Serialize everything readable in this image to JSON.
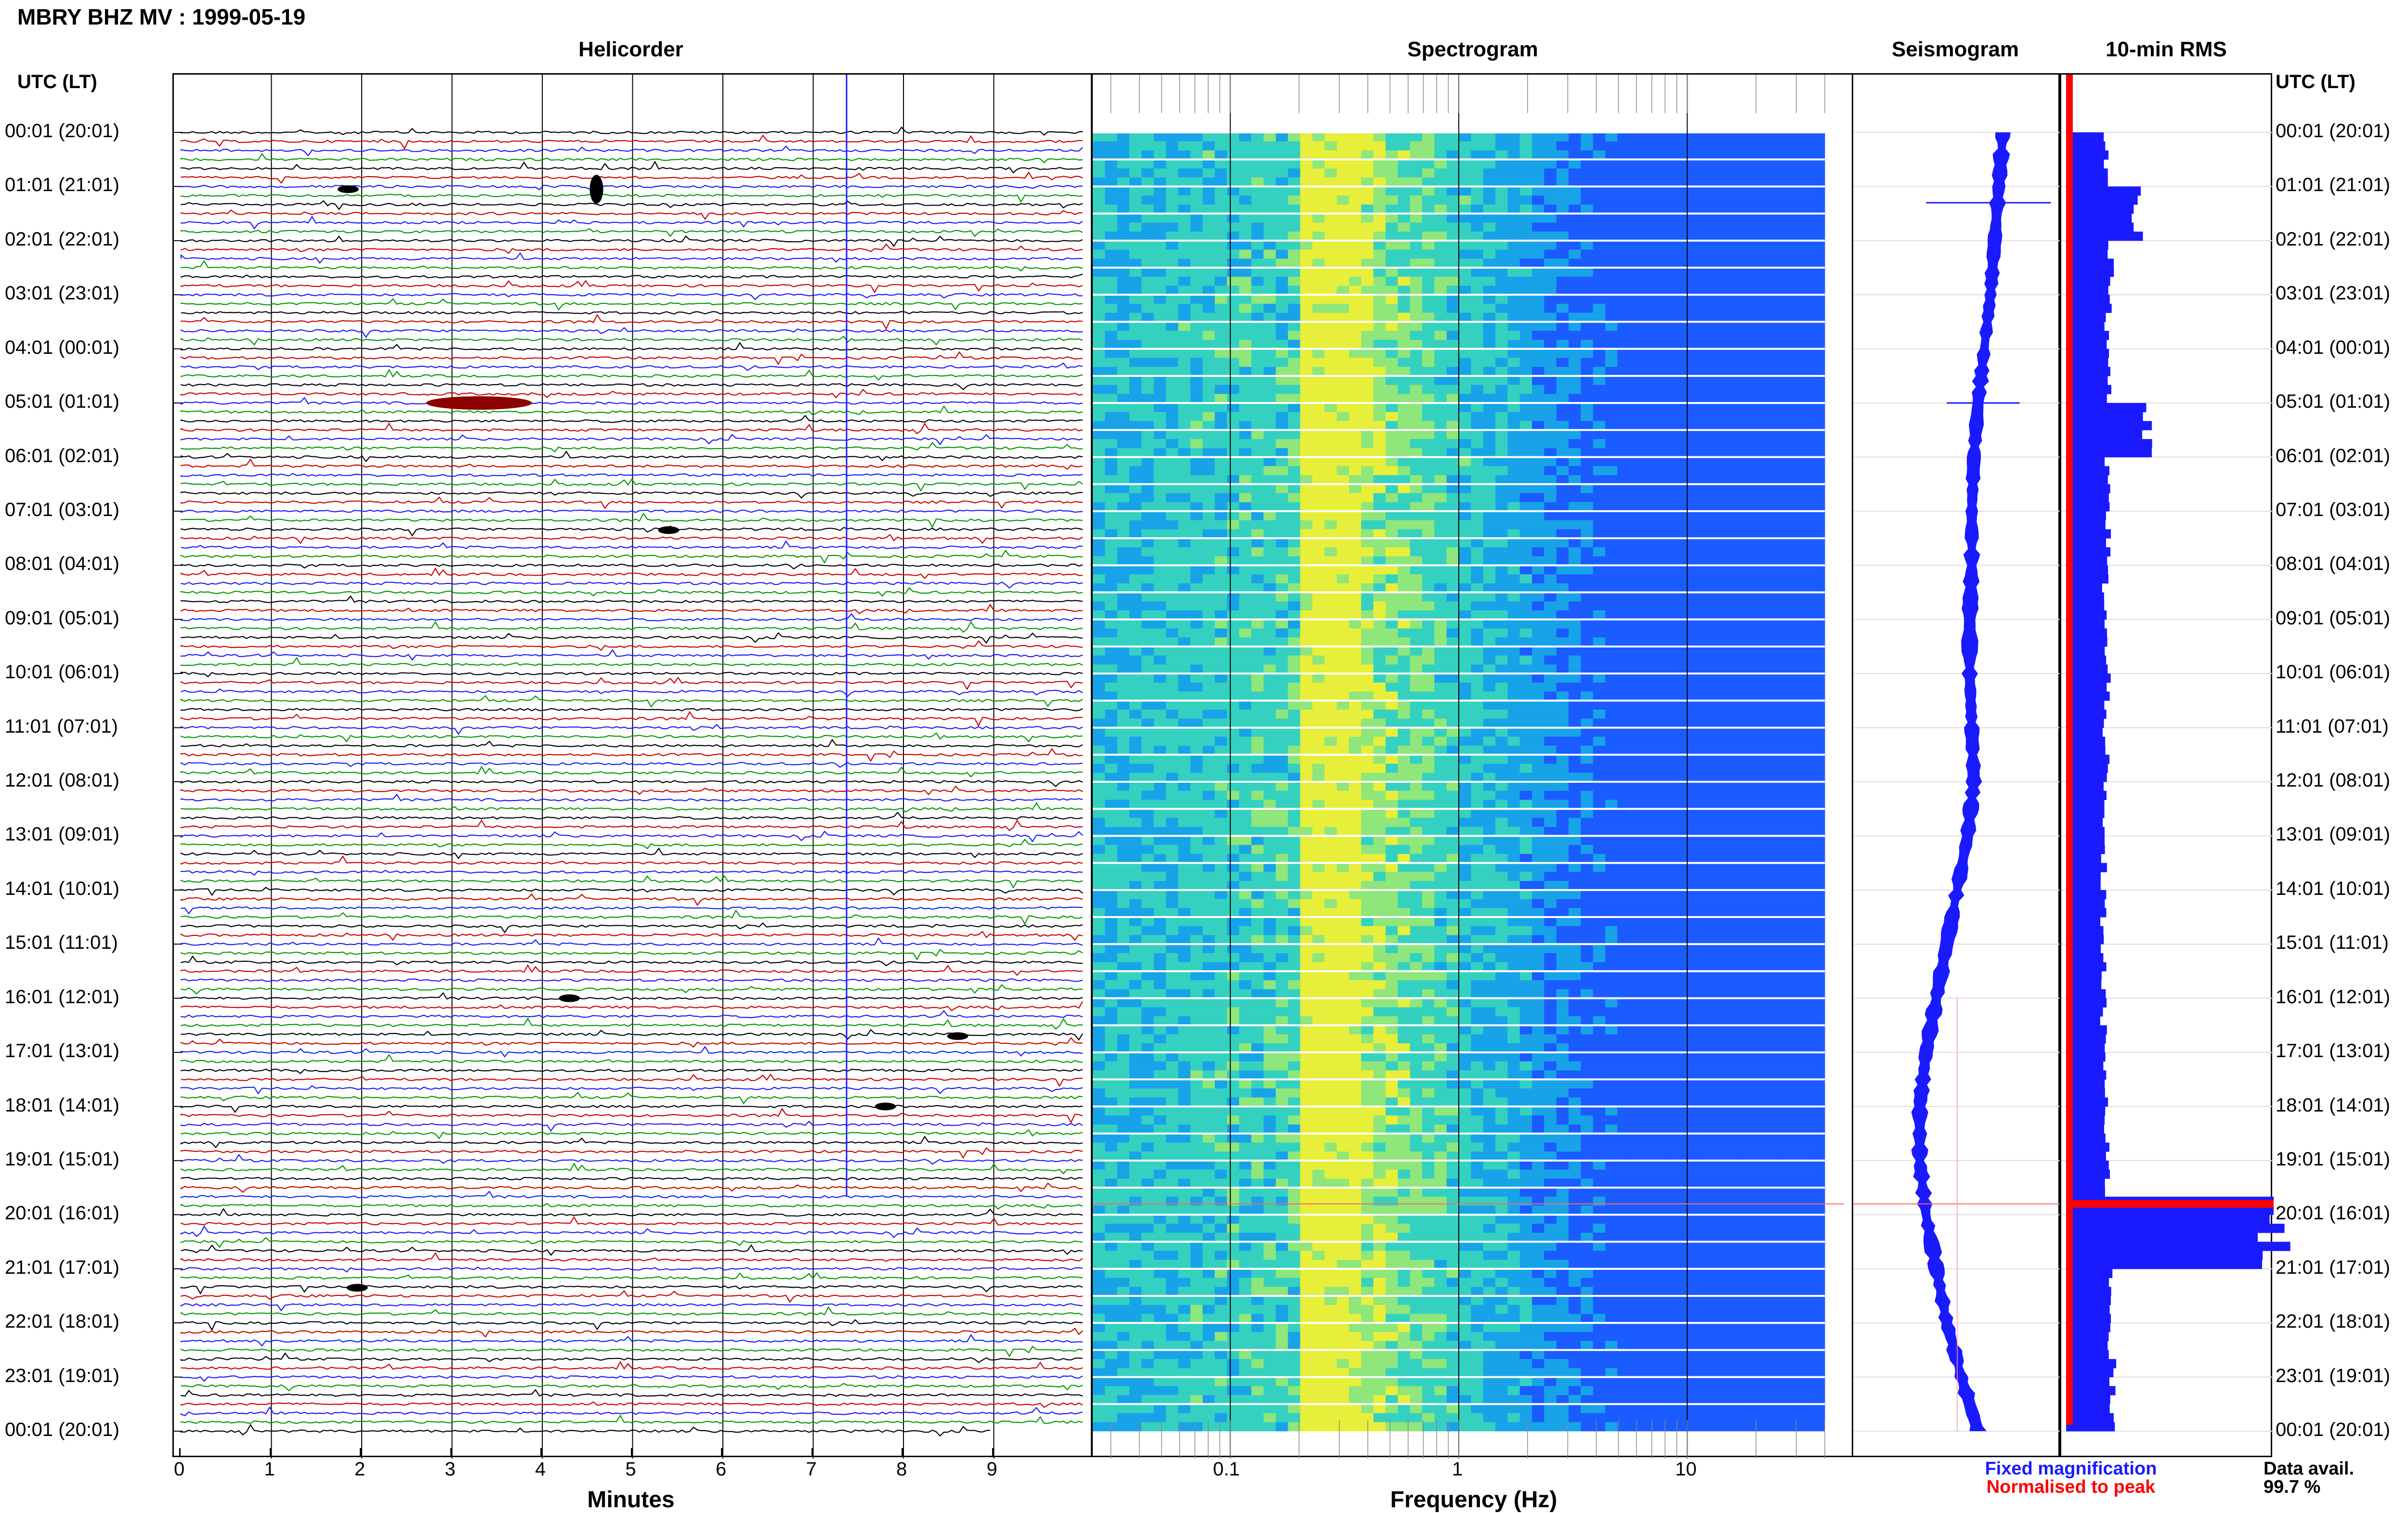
{
  "header": {
    "title": "MBRY BHZ MV : 1999-05-19",
    "utc_left": "UTC (LT)",
    "utc_right": "UTC (LT)"
  },
  "panels": {
    "helicorder": "Helicorder",
    "spectrogram": "Spectrogram",
    "seismogram": "Seismogram",
    "rms": "10-min RMS"
  },
  "time_labels": [
    "00:01 (20:01)",
    "01:01 (21:01)",
    "02:01 (22:01)",
    "03:01 (23:01)",
    "04:01 (00:01)",
    "05:01 (01:01)",
    "06:01 (02:01)",
    "07:01 (03:01)",
    "08:01 (04:01)",
    "09:01 (05:01)",
    "10:01 (06:01)",
    "11:01 (07:01)",
    "12:01 (08:01)",
    "13:01 (09:01)",
    "14:01 (10:01)",
    "15:01 (11:01)",
    "16:01 (12:01)",
    "17:01 (13:01)",
    "18:01 (14:01)",
    "19:01 (15:01)",
    "20:01 (16:01)",
    "21:01 (17:01)",
    "22:01 (18:01)",
    "23:01 (19:01)",
    "00:01 (20:01)"
  ],
  "axes": {
    "minutes_label": "Minutes",
    "minutes_ticks": [
      "0",
      "1",
      "2",
      "3",
      "4",
      "5",
      "6",
      "7",
      "8",
      "9"
    ],
    "freq_label": "Frequency (Hz)",
    "freq_ticks": [
      "0.1",
      "1",
      "10"
    ]
  },
  "legend": {
    "fixed": "Fixed magnification",
    "normalised": "Normalised to peak",
    "fixed_color": "#1a1aff",
    "normalised_color": "#ff0000",
    "data_avail_label": "Data avail.",
    "data_avail_value": "99.7 %"
  },
  "colors": {
    "trace_cycle": [
      "#000000",
      "#cc0000",
      "#1a1aff",
      "#009900"
    ],
    "rms_bar": "#1a1aff",
    "rms_norm": "#ff0000"
  },
  "chart_data": [
    {
      "type": "line",
      "panel": "Helicorder",
      "xlabel": "Minutes",
      "xlim": [
        0,
        10
      ],
      "rows_per_hour": 6,
      "hours": 24,
      "events": [
        {
          "hour": 1.05,
          "minute": 4.6
        },
        {
          "hour": 1.05,
          "minute": 1.85
        },
        {
          "hour": 5.0,
          "minute": 3.3
        },
        {
          "hour": 7.35,
          "minute": 5.4
        },
        {
          "hour": 16.0,
          "minute": 4.3
        },
        {
          "hour": 16.7,
          "minute": 8.6
        },
        {
          "hour": 18.0,
          "minute": 7.8
        },
        {
          "hour": 21.35,
          "minute": 1.95
        }
      ]
    },
    {
      "type": "heatmap",
      "panel": "Spectrogram",
      "xlabel": "Frequency (Hz)",
      "xscale": "log",
      "xlim": [
        0.025,
        40
      ],
      "peak_band_hz": [
        0.2,
        0.35
      ]
    },
    {
      "type": "line",
      "panel": "Seismogram",
      "description_values": "hourly amplitude envelope",
      "envelope_x": [
        0.72,
        0.7,
        0.68,
        0.66,
        0.63,
        0.6,
        0.58,
        0.57,
        0.57,
        0.56,
        0.56,
        0.57,
        0.58,
        0.55,
        0.5,
        0.45,
        0.4,
        0.35,
        0.32,
        0.32,
        0.35,
        0.4,
        0.45,
        0.52,
        0.6
      ]
    },
    {
      "type": "bar",
      "panel": "10-min RMS",
      "hourly_rms": [
        0.2,
        0.35,
        0.22,
        0.2,
        0.21,
        0.38,
        0.2,
        0.2,
        0.19,
        0.19,
        0.2,
        0.19,
        0.18,
        0.18,
        0.18,
        0.18,
        0.18,
        0.19,
        0.19,
        0.2,
        1.0,
        0.22,
        0.22,
        0.22
      ],
      "peak_hour": 19.8
    }
  ]
}
